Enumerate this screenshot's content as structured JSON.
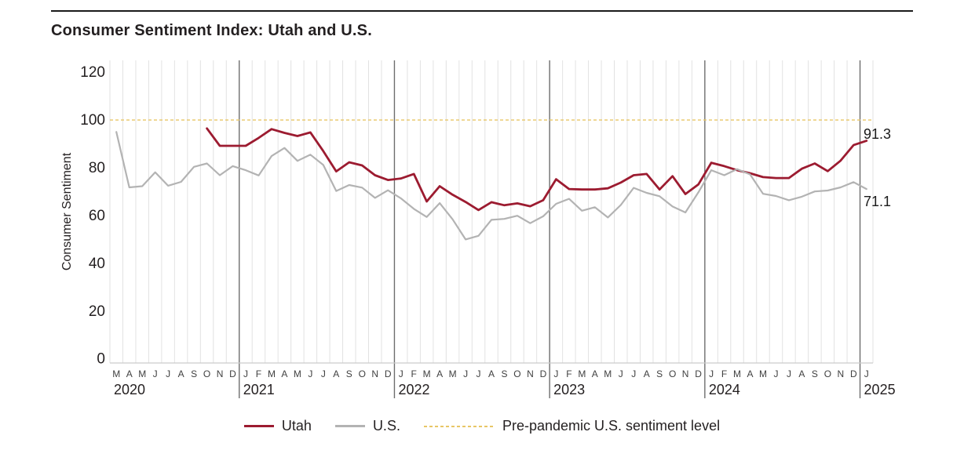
{
  "chart_data": {
    "type": "line",
    "title": "Consumer Sentiment Index: Utah and U.S.",
    "ylabel": "Consumer Sentiment",
    "ylim": [
      0,
      120
    ],
    "yticks": [
      0,
      20,
      40,
      60,
      80,
      100,
      120
    ],
    "grid": "vertical monthly gridlines only, darker divider at each January, no horizontal gridlines",
    "legend_position": "bottom-center",
    "x_range": "Mar 2020 - Jan 2025",
    "month_letters": [
      "M",
      "A",
      "M",
      "J",
      "J",
      "A",
      "S",
      "O",
      "N",
      "D",
      "J",
      "F",
      "M",
      "A",
      "M",
      "J",
      "J",
      "A",
      "S",
      "O",
      "N",
      "D",
      "J",
      "F",
      "M",
      "A",
      "M",
      "J",
      "J",
      "A",
      "S",
      "O",
      "N",
      "D",
      "J",
      "F",
      "M",
      "A",
      "M",
      "J",
      "J",
      "A",
      "S",
      "O",
      "N",
      "D",
      "J",
      "F",
      "M",
      "A",
      "M",
      "J",
      "J",
      "A",
      "S",
      "O",
      "N",
      "D",
      "J"
    ],
    "years": [
      {
        "label": "2020",
        "start_index": 0
      },
      {
        "label": "2021",
        "start_index": 10
      },
      {
        "label": "2022",
        "start_index": 22
      },
      {
        "label": "2023",
        "start_index": 34
      },
      {
        "label": "2024",
        "start_index": 46
      },
      {
        "label": "2025",
        "start_index": 58
      }
    ],
    "year_divider_indices": [
      10,
      22,
      34,
      46,
      58
    ],
    "reference_line": {
      "label": "Pre-pandemic U.S. sentiment level",
      "value": 100
    },
    "series": [
      {
        "name": "Utah",
        "color": "#9c1b30",
        "end_label": "91.3",
        "values": [
          null,
          null,
          null,
          null,
          null,
          null,
          null,
          96.5,
          89.2,
          89.2,
          89.2,
          92.5,
          96.2,
          94.6,
          93.3,
          94.8,
          87.0,
          78.5,
          82.3,
          81.0,
          76.9,
          74.9,
          75.5,
          77.4,
          65.9,
          72.3,
          68.7,
          65.7,
          62.3,
          65.6,
          64.3,
          65.1,
          63.9,
          66.4,
          75.2,
          71.1,
          70.9,
          70.9,
          71.4,
          73.8,
          76.9,
          77.4,
          70.9,
          76.5,
          69.0,
          73.0,
          82.1,
          80.7,
          79.0,
          77.7,
          76.1,
          75.7,
          75.7,
          79.6,
          81.8,
          78.6,
          83.0,
          89.5,
          91.3
        ]
      },
      {
        "name": "U.S.",
        "color": "#b3b3b3",
        "end_label": "71.1",
        "values": [
          95.0,
          71.8,
          72.3,
          78.1,
          72.5,
          74.1,
          80.4,
          81.8,
          76.9,
          80.7,
          79.0,
          76.8,
          84.9,
          88.3,
          82.9,
          85.5,
          81.2,
          70.3,
          72.8,
          71.7,
          67.4,
          70.6,
          67.2,
          62.8,
          59.4,
          65.2,
          58.4,
          50.0,
          51.5,
          58.2,
          58.6,
          59.9,
          56.8,
          59.7,
          64.9,
          67.0,
          62.0,
          63.5,
          59.2,
          64.4,
          71.6,
          69.5,
          68.1,
          63.8,
          61.3,
          69.7,
          79.0,
          76.9,
          79.4,
          77.2,
          69.1,
          68.2,
          66.4,
          67.9,
          70.1,
          70.5,
          71.8,
          74.0,
          71.1
        ]
      }
    ]
  },
  "legend": {
    "items": [
      {
        "label": "Utah"
      },
      {
        "label": "U.S."
      },
      {
        "label": "Pre-pandemic U.S. sentiment level"
      }
    ]
  },
  "colors": {
    "utah_line": "#9c1b30",
    "us_line": "#b3b3b3",
    "reference_line": "#e8c666",
    "month_grid": "#e2e2e2",
    "year_divider": "#6e6e6e",
    "axis_line": "#cccccc",
    "tick_text": "#231f20",
    "month_text": "#404040"
  }
}
